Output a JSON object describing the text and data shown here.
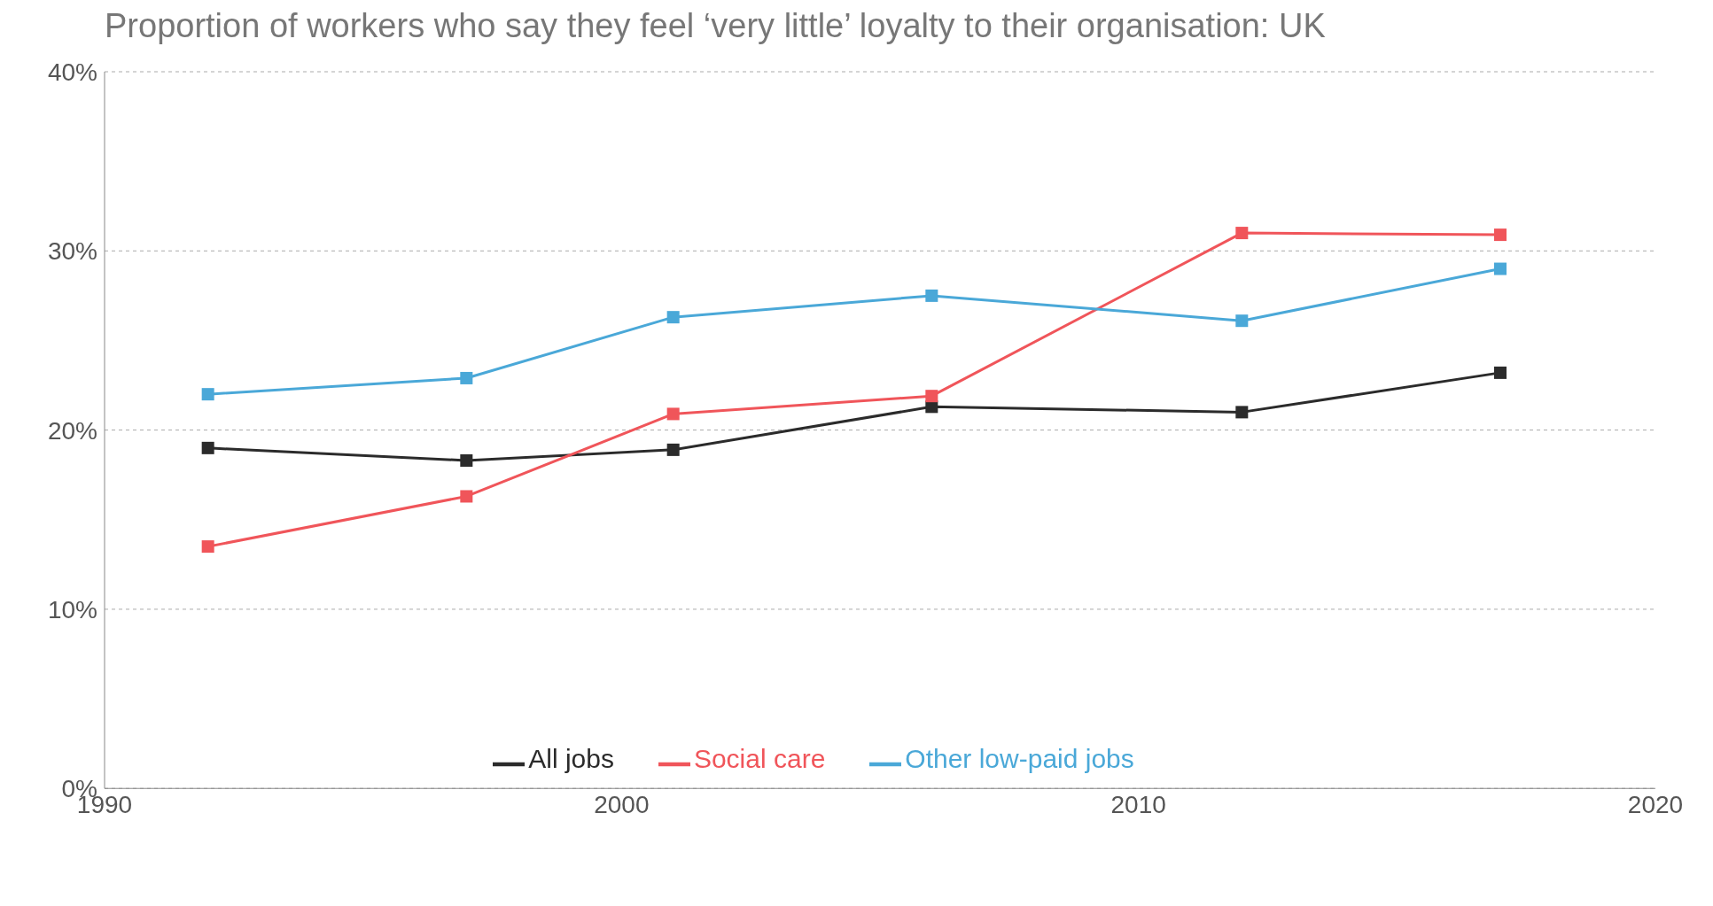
{
  "chart_data": {
    "type": "line",
    "title": "Proportion of workers who say they feel ‘very little’ loyalty to their organisation: UK",
    "x": [
      1992,
      1997,
      2001,
      2006,
      2012,
      2017
    ],
    "series": [
      {
        "name": "All jobs",
        "color": "#2b2b2b",
        "values": [
          19.0,
          18.3,
          18.9,
          21.3,
          21.0,
          23.2
        ]
      },
      {
        "name": "Social care",
        "color": "#f0555a",
        "values": [
          13.5,
          16.3,
          20.9,
          21.9,
          31.0,
          30.9
        ]
      },
      {
        "name": "Other low-paid jobs",
        "color": "#4aa8d8",
        "values": [
          22.0,
          22.9,
          26.3,
          27.5,
          26.1,
          29.0
        ]
      }
    ],
    "xlim": [
      1990,
      2020
    ],
    "xticks": [
      1990,
      2000,
      2010,
      2020
    ],
    "ylim": [
      0,
      40
    ],
    "yticks": [
      {
        "value": 0,
        "label": "0%"
      },
      {
        "value": 10,
        "label": "10%"
      },
      {
        "value": 20,
        "label": "20%"
      },
      {
        "value": 30,
        "label": "30%"
      },
      {
        "value": 40,
        "label": "40%"
      }
    ],
    "grid": "y",
    "legend": "bottom",
    "marker": "square",
    "line_style": "solid"
  }
}
